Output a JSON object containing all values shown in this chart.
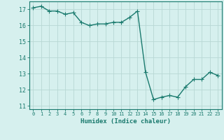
{
  "x": [
    0,
    1,
    2,
    3,
    4,
    5,
    6,
    7,
    8,
    9,
    10,
    11,
    12,
    13,
    14,
    15,
    16,
    17,
    18,
    19,
    20,
    21,
    22,
    23
  ],
  "y": [
    17.1,
    17.2,
    16.9,
    16.9,
    16.7,
    16.8,
    16.2,
    16.0,
    16.1,
    16.1,
    16.2,
    16.2,
    16.5,
    16.9,
    13.1,
    11.4,
    11.55,
    11.65,
    11.55,
    12.2,
    12.65,
    12.65,
    13.1,
    12.9
  ],
  "line_color": "#1a7a6e",
  "marker": "D",
  "marker_size": 2.2,
  "bg_color": "#d6f0ee",
  "grid_color": "#b8d8d4",
  "xlabel": "Humidex (Indice chaleur)",
  "ylim": [
    10.8,
    17.5
  ],
  "xlim": [
    -0.5,
    23.5
  ],
  "yticks": [
    11,
    12,
    13,
    14,
    15,
    16,
    17
  ],
  "xticks": [
    0,
    1,
    2,
    3,
    4,
    5,
    6,
    7,
    8,
    9,
    10,
    11,
    12,
    13,
    14,
    15,
    16,
    17,
    18,
    19,
    20,
    21,
    22,
    23
  ],
  "xtick_labels": [
    "0",
    "1",
    "2",
    "3",
    "4",
    "5",
    "6",
    "7",
    "8",
    "9",
    "10",
    "11",
    "12",
    "13",
    "14",
    "15",
    "16",
    "17",
    "18",
    "19",
    "20",
    "21",
    "22",
    "23"
  ],
  "line_width": 1.0
}
